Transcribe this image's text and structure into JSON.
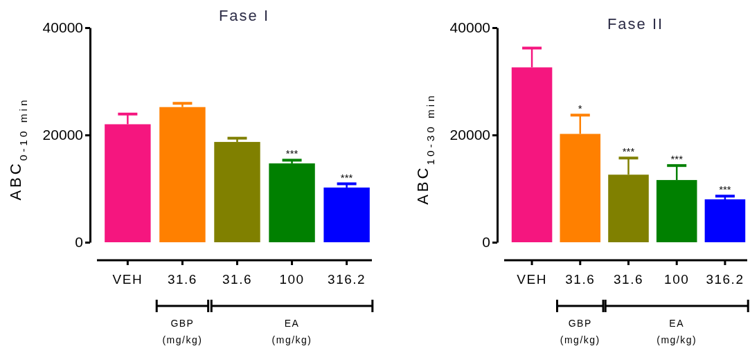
{
  "chart_data": [
    {
      "type": "bar",
      "title": "Fase I",
      "ylabel": "ABC$_{0-10 min}$",
      "categories": [
        "VEH",
        "31.6",
        "31.6",
        "100",
        "316.2"
      ],
      "values": [
        22000,
        25200,
        18700,
        14700,
        10200
      ],
      "errors": [
        [
          22000,
          23900
        ],
        [
          25200,
          25900
        ],
        [
          18700,
          19400
        ],
        [
          14700,
          15300
        ],
        [
          10200,
          10900
        ]
      ],
      "colors": [
        "#f5167f",
        "#ff8000",
        "#808000",
        "#008000",
        "#0000ff"
      ],
      "ylim": [
        0,
        40000
      ],
      "yticks": [
        0,
        20000,
        40000
      ],
      "grid": false,
      "value_labels": [
        null,
        null,
        null,
        "***",
        "***"
      ],
      "annotations": [
        "GBP (mg/kg)",
        "EA (mg/kg)"
      ]
    },
    {
      "type": "bar",
      "title": "Fase II",
      "ylabel": "ABC$_{10-30 min}$",
      "categories": [
        "VEH",
        "31.6",
        "31.6",
        "100",
        "316.2"
      ],
      "values": [
        32600,
        20200,
        12600,
        11600,
        8000
      ],
      "errors": [
        [
          32600,
          36200
        ],
        [
          20200,
          23700
        ],
        [
          12600,
          15700
        ],
        [
          11600,
          14300
        ],
        [
          8000,
          8600
        ]
      ],
      "colors": [
        "#f5167f",
        "#ff8000",
        "#808000",
        "#008000",
        "#0000ff"
      ],
      "ylim": [
        0,
        40000
      ],
      "yticks": [
        0,
        20000,
        40000
      ],
      "grid": false,
      "value_labels": [
        null,
        "*",
        "***",
        "***",
        "***"
      ],
      "annotations": [
        "GBP (mg/kg)",
        "EA (mg/kg)"
      ]
    }
  ]
}
